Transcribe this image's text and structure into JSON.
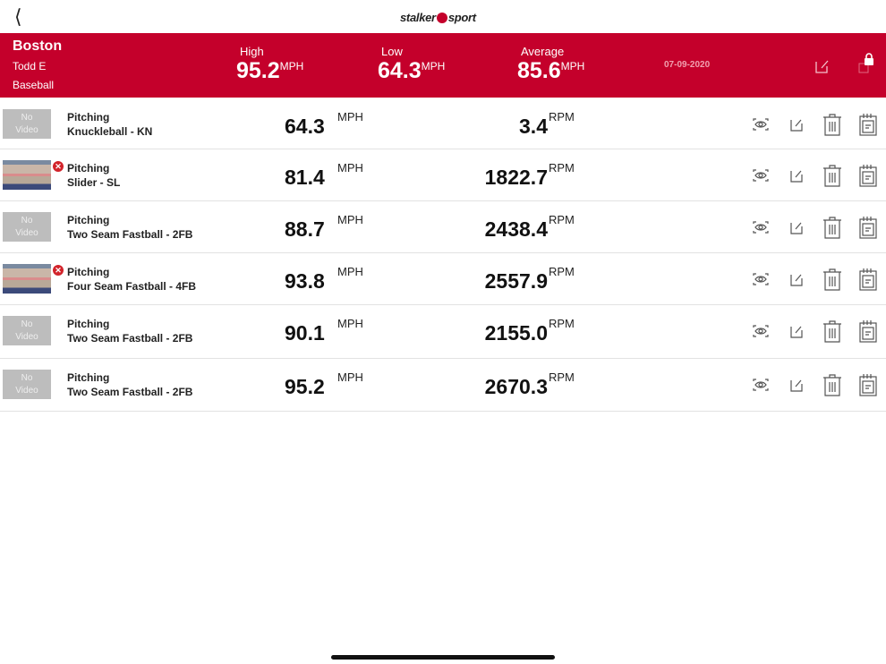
{
  "nav": {
    "back_icon": "chevron-left-icon",
    "logo": "stalker sport"
  },
  "header": {
    "team": "Boston",
    "player": "Todd E",
    "sport": "Baseball",
    "high_label": "High",
    "high": "95.2",
    "low_label": "Low",
    "low": "64.3",
    "avg_label": "Average",
    "avg": "85.6",
    "unit": "MPH",
    "date": "07-09-2020",
    "color": "#c4002b"
  },
  "rows": [
    {
      "video": false,
      "video_label": "No Video",
      "category": "Pitching",
      "pitch": "Knuckleball - KN",
      "speed": "64.3",
      "speed_unit": "MPH",
      "spin": "3.4",
      "spin_unit": "RPM"
    },
    {
      "video": true,
      "video_label": "",
      "category": "Pitching",
      "pitch": "Slider - SL",
      "speed": "81.4",
      "speed_unit": "MPH",
      "spin": "1822.7",
      "spin_unit": "RPM"
    },
    {
      "video": false,
      "video_label": "No Video",
      "category": "Pitching",
      "pitch": "Two Seam Fastball - 2FB",
      "speed": "88.7",
      "speed_unit": "MPH",
      "spin": "2438.4",
      "spin_unit": "RPM"
    },
    {
      "video": true,
      "video_label": "",
      "category": "Pitching",
      "pitch": "Four Seam Fastball - 4FB",
      "speed": "93.8",
      "speed_unit": "MPH",
      "spin": "2557.9",
      "spin_unit": "RPM"
    },
    {
      "video": false,
      "video_label": "No Video",
      "category": "Pitching",
      "pitch": "Two Seam Fastball - 2FB",
      "speed": "90.1",
      "speed_unit": "MPH",
      "spin": "2155.0",
      "spin_unit": "RPM"
    },
    {
      "video": false,
      "video_label": "No Video",
      "category": "Pitching",
      "pitch": "Two Seam Fastball - 2FB",
      "speed": "95.2",
      "speed_unit": "MPH",
      "spin": "2670.3",
      "spin_unit": "RPM"
    }
  ]
}
